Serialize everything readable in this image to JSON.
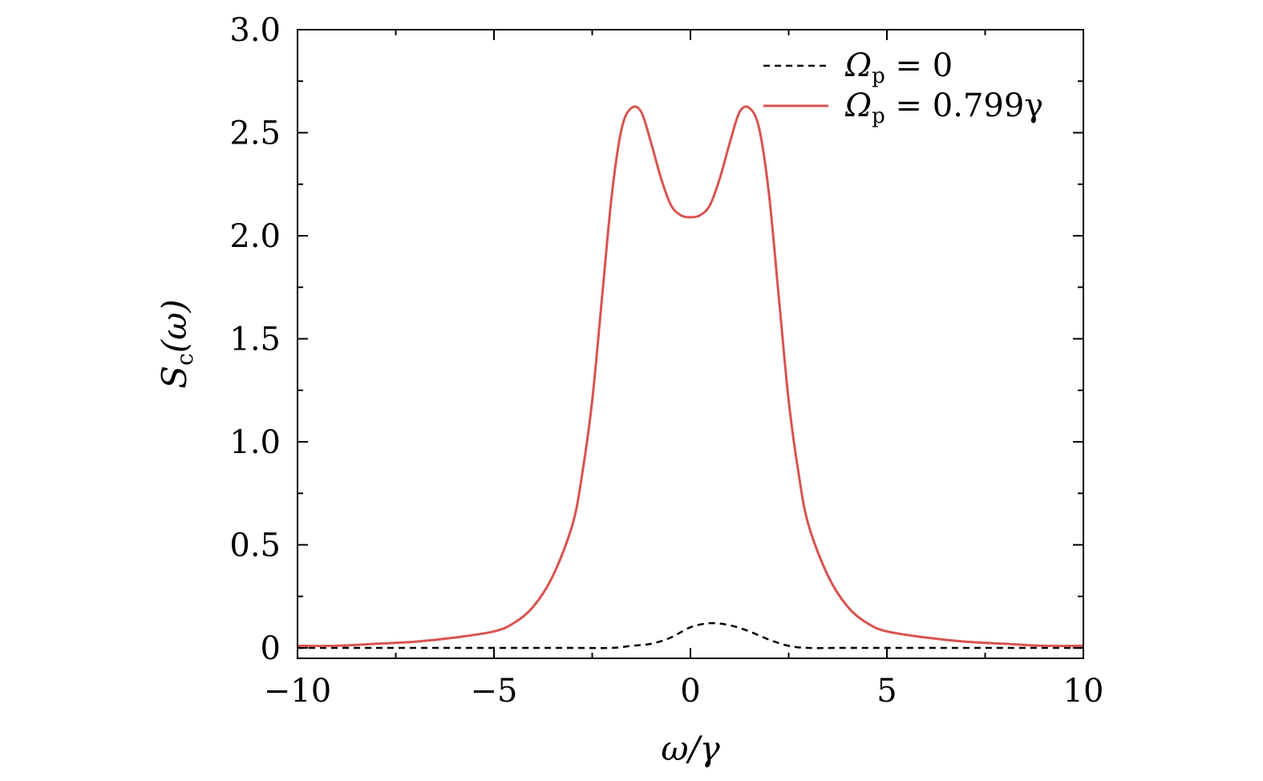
{
  "chart_data": {
    "type": "line",
    "title": "",
    "xlabel": "ω/γ",
    "ylabel": "S_c(ω)",
    "ylabel_main": "S",
    "ylabel_sub": "c",
    "ylabel_arg": "(ω)",
    "xlim": [
      -10,
      10
    ],
    "ylim": [
      0,
      3.0
    ],
    "x_ticks": [
      -10,
      -5,
      0,
      5,
      10
    ],
    "x_tick_labels": [
      "−10",
      "−5",
      "0",
      "5",
      "10"
    ],
    "y_ticks": [
      0,
      0.5,
      1.0,
      1.5,
      2.0,
      2.5,
      3.0
    ],
    "y_tick_labels": [
      "0",
      "0.5",
      "1.0",
      "1.5",
      "2.0",
      "2.5",
      "3.0"
    ],
    "grid": false,
    "legend_position": "top-right",
    "series": [
      {
        "name": "Ωp = 0",
        "legend_main": "Ω",
        "legend_sub": "p",
        "legend_rest": " = 0",
        "color": "#000000",
        "style": "dashed",
        "x": [
          -10,
          -8,
          -6,
          -4,
          -3,
          -2,
          -1.5,
          -1,
          -0.5,
          0,
          0.5,
          1,
          1.5,
          2,
          2.5,
          3,
          4,
          6,
          8,
          10
        ],
        "y": [
          0.0,
          0.0,
          0.0,
          0.0,
          0.0,
          0.0,
          0.01,
          0.02,
          0.05,
          0.1,
          0.12,
          0.11,
          0.08,
          0.04,
          0.01,
          0.0,
          0.0,
          0.0,
          0.0,
          0.0
        ]
      },
      {
        "name": "Ωp = 0.799γ",
        "legend_main": "Ω",
        "legend_sub": "p",
        "legend_rest": " = 0.799γ",
        "color": "#d9534f",
        "style": "solid",
        "x": [
          -10,
          -9,
          -8,
          -7,
          -6,
          -5,
          -4.5,
          -4,
          -3.5,
          -3,
          -2.75,
          -2.5,
          -2.25,
          -2,
          -1.75,
          -1.5,
          -1.25,
          -1,
          -0.75,
          -0.5,
          -0.25,
          0,
          0.25,
          0.5,
          0.75,
          1,
          1.25,
          1.5,
          1.75,
          2,
          2.25,
          2.5,
          2.75,
          3,
          3.5,
          4,
          4.5,
          5,
          6,
          7,
          8,
          9,
          10
        ],
        "y": [
          0.01,
          0.01,
          0.02,
          0.03,
          0.05,
          0.08,
          0.12,
          0.2,
          0.35,
          0.6,
          0.85,
          1.2,
          1.7,
          2.2,
          2.52,
          2.62,
          2.6,
          2.45,
          2.28,
          2.15,
          2.1,
          2.09,
          2.1,
          2.15,
          2.28,
          2.45,
          2.6,
          2.62,
          2.52,
          2.2,
          1.7,
          1.2,
          0.85,
          0.6,
          0.35,
          0.2,
          0.12,
          0.08,
          0.05,
          0.03,
          0.02,
          0.01,
          0.01
        ]
      }
    ]
  }
}
